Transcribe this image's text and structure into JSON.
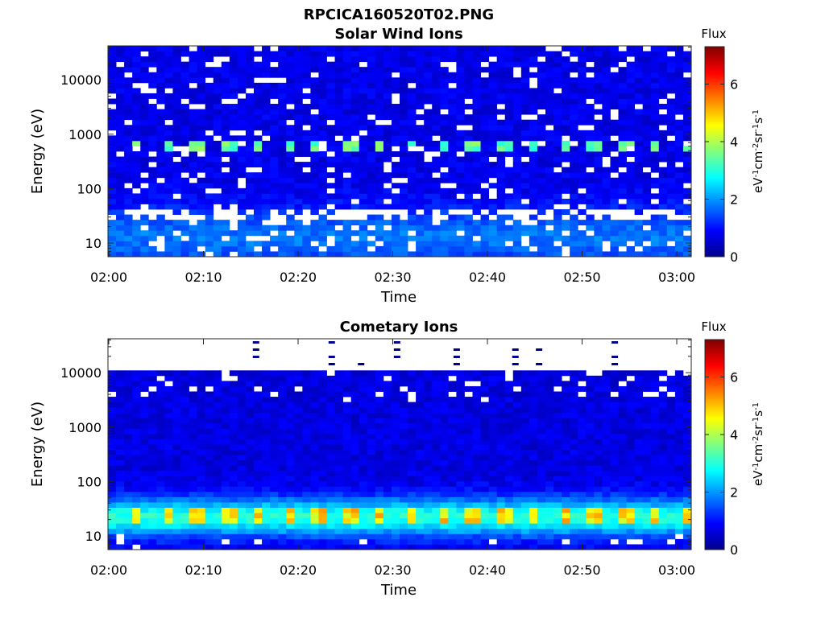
{
  "figure": {
    "title": "RPCICA160520T02.PNG"
  },
  "chart_data": [
    {
      "type": "heatmap",
      "title": "Solar Wind Ions",
      "xlabel": "Time",
      "ylabel": "Energy (eV)",
      "x_ticks": [
        "02:00",
        "02:10",
        "02:20",
        "02:30",
        "02:40",
        "02:50",
        "03:00"
      ],
      "y_ticks": [
        "10",
        "100",
        "1000",
        "10000"
      ],
      "y_scale": "log",
      "xlim": [
        "02:00",
        "03:01"
      ],
      "ylim": [
        5.6,
        42000
      ],
      "colorbar": {
        "title": "Flux",
        "label": "eV^-1 cm^-2 sr^-1 s^-1",
        "ticks": [
          "0",
          "2",
          "4",
          "6"
        ],
        "range": [
          0,
          7.3
        ],
        "colormap": "jet"
      },
      "features": [
        {
          "description_energy_eV": 650,
          "peak_flux": 3.6,
          "pattern": "periodic ~3.2 min"
        }
      ]
    },
    {
      "type": "heatmap",
      "title": "Cometary Ions",
      "xlabel": "Time",
      "ylabel": "Energy (eV)",
      "x_ticks": [
        "02:00",
        "02:10",
        "02:20",
        "02:30",
        "02:40",
        "02:50",
        "03:00"
      ],
      "y_ticks": [
        "10",
        "100",
        "1000",
        "10000"
      ],
      "y_scale": "log",
      "xlim": [
        "02:00",
        "03:01"
      ],
      "ylim": [
        5.6,
        42000
      ],
      "colorbar": {
        "title": "Flux",
        "label": "eV^-1 cm^-2 sr^-1 s^-1",
        "ticks": [
          "0",
          "2",
          "4",
          "6"
        ],
        "range": [
          0,
          7.3
        ],
        "colormap": "jet"
      },
      "features": [
        {
          "description_energy_eV": 25,
          "peak_flux": 5.3,
          "pattern": "periodic ~3.2 min"
        }
      ]
    }
  ]
}
